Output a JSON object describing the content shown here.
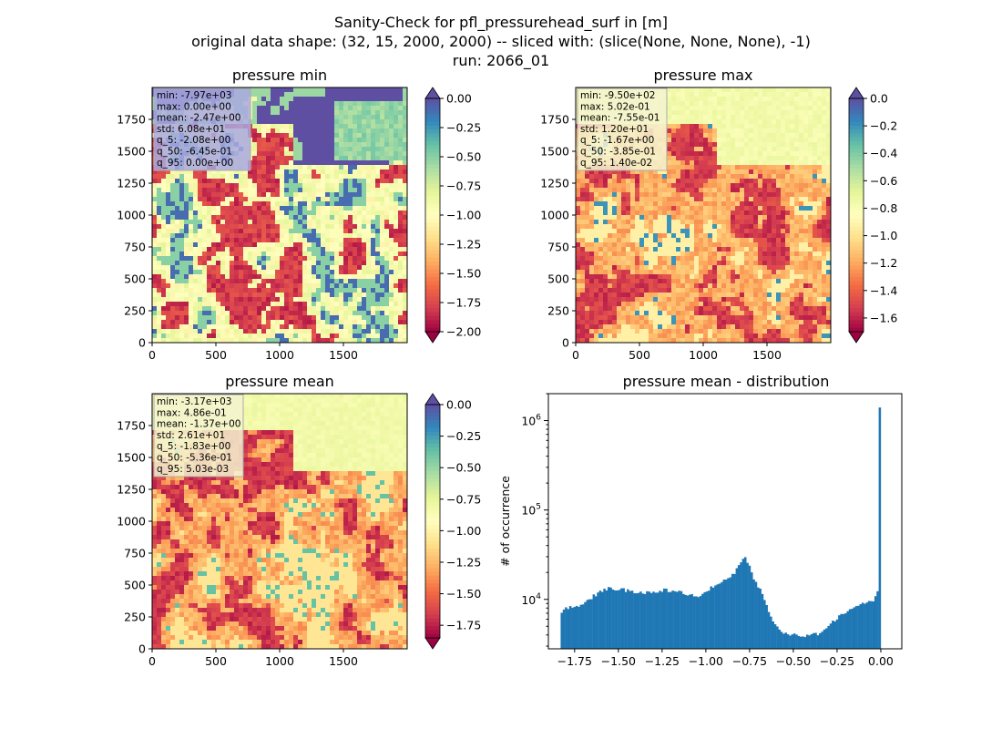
{
  "suptitle": {
    "line1": "Sanity-Check for pfl_pressurehead_surf in [m]",
    "line2": "original data shape: (32, 15, 2000, 2000) -- sliced with: (slice(None, None, None), -1)",
    "line3": "run: 2066_01"
  },
  "colors": {
    "spectral": [
      "#9e0142",
      "#d53e4f",
      "#f46d43",
      "#fdae61",
      "#fee08b",
      "#ffffbf",
      "#e6f598",
      "#abdda4",
      "#66c2a5",
      "#3288bd",
      "#5e4fa2"
    ],
    "hist": "#1f77b4",
    "statbox_bg": "#c8c8f0"
  },
  "chart_data": [
    {
      "type": "heatmap",
      "title": "pressure min",
      "xlim": [
        0,
        2000
      ],
      "ylim": [
        0,
        2000
      ],
      "xticks": [
        "0",
        "500",
        "1000",
        "1500"
      ],
      "yticks": [
        "0",
        "250",
        "500",
        "750",
        "1000",
        "1250",
        "1500",
        "1750"
      ],
      "colorbar": {
        "vmin": -2.0,
        "vmax": 0.0,
        "extend": "both",
        "ticks": [
          "0.00",
          "−0.25",
          "−0.50",
          "−0.75",
          "−1.00",
          "−1.25",
          "−1.50",
          "−1.75",
          "−2.00"
        ]
      },
      "stats": [
        "min: -7.97e+03",
        "max: 0.00e+00",
        "mean: -2.47e+00",
        "std: 6.08e+01",
        "q_5: -2.08e+00",
        "q_50: -6.45e-01",
        "q_95: 0.00e+00"
      ],
      "stats_box_color": "#a9a9e0"
    },
    {
      "type": "heatmap",
      "title": "pressure max",
      "xlim": [
        0,
        2000
      ],
      "ylim": [
        0,
        2000
      ],
      "xticks": [
        "0",
        "500",
        "1000",
        "1500"
      ],
      "yticks": [
        "0",
        "250",
        "500",
        "750",
        "1000",
        "1250",
        "1500",
        "1750"
      ],
      "colorbar": {
        "vmin": -1.7,
        "vmax": 0.0,
        "extend": "both",
        "ticks": [
          "0.0",
          "−0.2",
          "−0.4",
          "−0.6",
          "−0.8",
          "−1.0",
          "−1.2",
          "−1.4",
          "−1.6"
        ]
      },
      "stats": [
        "min: -9.50e+02",
        "max: 5.02e-01",
        "mean: -7.55e-01",
        "std: 1.20e+01",
        "q_5: -1.67e+00",
        "q_50: -3.85e-01",
        "q_95: 1.40e-02"
      ],
      "stats_box_color": "#f5f3d0"
    },
    {
      "type": "heatmap",
      "title": "pressure mean",
      "xlim": [
        0,
        2000
      ],
      "ylim": [
        0,
        2000
      ],
      "xticks": [
        "0",
        "500",
        "1000",
        "1500"
      ],
      "yticks": [
        "0",
        "250",
        "500",
        "750",
        "1000",
        "1250",
        "1500",
        "1750"
      ],
      "colorbar": {
        "vmin": -1.85,
        "vmax": 0.0,
        "extend": "both",
        "ticks": [
          "0.00",
          "−0.25",
          "−0.50",
          "−0.75",
          "−1.00",
          "−1.25",
          "−1.50",
          "−1.75"
        ]
      },
      "stats": [
        "min: -3.17e+03",
        "max: 4.86e-01",
        "mean: -1.37e+00",
        "std: 2.61e+01",
        "q_5: -1.83e+00",
        "q_50: -5.36e-01",
        "q_95: 5.03e-03"
      ],
      "stats_box_color": "#f5f3d0"
    },
    {
      "type": "bar",
      "title": "pressure mean - distribution",
      "ylabel": "# of occurrence",
      "yscale": "log",
      "xlim": [
        -1.9,
        0.12
      ],
      "ylim": [
        2800,
        2000000
      ],
      "xticks": [
        -1.75,
        -1.5,
        -1.25,
        -1.0,
        -0.75,
        -0.5,
        -0.25,
        0.0
      ],
      "xtick_labels": [
        "−1.75",
        "−1.50",
        "−1.25",
        "−1.00",
        "−0.75",
        "−0.50",
        "−0.25",
        "0.00"
      ],
      "ytick_labels": [
        "10^4",
        "10^5",
        "10^6"
      ],
      "anchors": [
        [
          -1.83,
          6800
        ],
        [
          -1.8,
          8100
        ],
        [
          -1.75,
          8400
        ],
        [
          -1.7,
          9000
        ],
        [
          -1.65,
          10500
        ],
        [
          -1.6,
          12500
        ],
        [
          -1.55,
          13500
        ],
        [
          -1.5,
          13000
        ],
        [
          -1.45,
          12600
        ],
        [
          -1.4,
          12300
        ],
        [
          -1.35,
          12000
        ],
        [
          -1.3,
          12300
        ],
        [
          -1.25,
          12700
        ],
        [
          -1.2,
          12400
        ],
        [
          -1.15,
          12000
        ],
        [
          -1.1,
          11500
        ],
        [
          -1.05,
          11000
        ],
        [
          -1.0,
          12000
        ],
        [
          -0.95,
          14500
        ],
        [
          -0.9,
          16000
        ],
        [
          -0.85,
          18500
        ],
        [
          -0.8,
          25000
        ],
        [
          -0.78,
          31000
        ],
        [
          -0.75,
          24000
        ],
        [
          -0.72,
          16000
        ],
        [
          -0.69,
          13000
        ],
        [
          -0.66,
          9500
        ],
        [
          -0.63,
          6500
        ],
        [
          -0.6,
          5000
        ],
        [
          -0.55,
          4200
        ],
        [
          -0.5,
          4000
        ],
        [
          -0.45,
          3900
        ],
        [
          -0.4,
          4000
        ],
        [
          -0.35,
          4200
        ],
        [
          -0.3,
          5000
        ],
        [
          -0.25,
          6200
        ],
        [
          -0.2,
          7200
        ],
        [
          -0.15,
          8500
        ],
        [
          -0.1,
          9300
        ],
        [
          -0.05,
          9600
        ],
        [
          -0.02,
          11000
        ],
        [
          -0.01,
          18000
        ],
        [
          0.0,
          22000
        ]
      ],
      "peak": [
        0.0,
        1400000
      ]
    }
  ]
}
